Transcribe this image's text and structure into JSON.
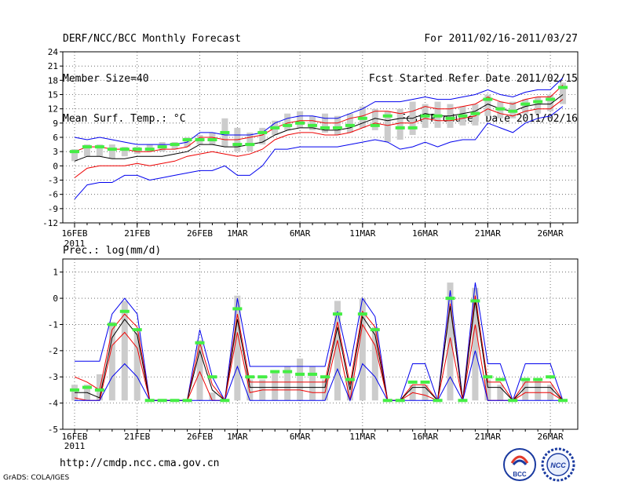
{
  "header": {
    "title": "DERF/NCC/BCC Monthly Forecast",
    "member_size": "Member Size=40",
    "variable": "Mean Surf. Temp.: °C",
    "period": "For 2011/02/16-2011/03/27",
    "started": "Fcst Started Refer Date 2011/02/15",
    "produced": "Fcst Produced Date 2011/02/16"
  },
  "footer": {
    "url": "http://cmdp.ncc.cma.gov.cn",
    "grads": "GrADS: COLA/IGES",
    "logo1_text": "BCC",
    "logo2_text": "NCC"
  },
  "colors": {
    "bar": "#cccccc",
    "envelope": "#0000ee",
    "spread": "#ee0000",
    "mean": "#000000",
    "marker": "#44ee44"
  },
  "chart_data": [
    {
      "type": "line",
      "title": "Mean Surf. Temp.: °C",
      "ylim": [
        -12,
        24
      ],
      "yticks": [
        -12,
        -9,
        -6,
        -3,
        0,
        3,
        6,
        9,
        12,
        15,
        18,
        21,
        24
      ],
      "x_tick_labels": [
        "16FEB",
        "21FEB",
        "26FEB",
        "1MAR",
        "6MAR",
        "11MAR",
        "16MAR",
        "21MAR",
        "26MAR"
      ],
      "x_tick_index": [
        0,
        5,
        10,
        13,
        18,
        23,
        28,
        33,
        38
      ],
      "year_label": "2011",
      "days": 40,
      "series": [
        {
          "name": "max",
          "values": [
            6,
            5.5,
            6,
            5.5,
            5,
            4.5,
            4.5,
            4.5,
            4.5,
            5,
            7,
            7,
            6.5,
            6.5,
            6.5,
            7,
            9,
            10,
            10.5,
            10.5,
            10,
            10,
            11,
            12,
            13.5,
            13.5,
            13.5,
            14,
            14.5,
            14,
            14,
            14.5,
            15,
            16,
            15,
            14.5,
            15.5,
            16,
            16,
            18.5
          ]
        },
        {
          "name": "upper",
          "values": [
            3,
            4,
            4,
            3.5,
            3.5,
            3,
            3,
            3.5,
            3.5,
            4,
            6,
            6,
            5.5,
            5.5,
            6,
            6.5,
            8,
            9,
            9.5,
            9.5,
            9,
            9,
            10,
            10.5,
            11.5,
            11.5,
            11,
            11.5,
            12.5,
            12,
            12,
            12.5,
            13,
            14.5,
            13.5,
            13,
            14,
            14.5,
            14.5,
            17
          ]
        },
        {
          "name": "mean",
          "values": [
            1,
            2,
            2,
            1.5,
            1.5,
            2,
            2,
            2,
            2.5,
            3,
            4.5,
            4.5,
            4,
            4,
            4.5,
            5,
            6.5,
            7.5,
            8,
            8,
            7.5,
            7.5,
            8,
            9,
            10,
            9.5,
            10,
            10,
            11,
            10.5,
            10.5,
            11,
            11.5,
            13,
            12,
            11.5,
            12.5,
            13,
            13,
            15
          ]
        },
        {
          "name": "lower",
          "values": [
            -2.5,
            -0.5,
            0,
            0,
            0,
            0.5,
            0,
            0.5,
            1,
            2,
            2.5,
            3,
            2.5,
            2,
            2.5,
            3.5,
            5.5,
            6.5,
            7,
            7,
            6.5,
            6.5,
            7,
            8,
            9,
            8.5,
            9,
            9,
            10,
            9.5,
            9.5,
            10,
            10.5,
            12,
            11,
            10.5,
            11.5,
            12,
            12,
            14
          ]
        },
        {
          "name": "min",
          "values": [
            -7,
            -4,
            -3.5,
            -3.5,
            -2,
            -2,
            -3,
            -2.5,
            -2,
            -1.5,
            -1,
            -1,
            0,
            -2,
            -2,
            0,
            3.5,
            3.5,
            4,
            4,
            4,
            4,
            4.5,
            5,
            5.5,
            5,
            3.5,
            4,
            5,
            4,
            5,
            5.5,
            5.5,
            9,
            8,
            7,
            9,
            10,
            10.5,
            12.5
          ]
        }
      ],
      "bars_low": [
        1,
        2,
        2,
        1.5,
        2,
        2.5,
        3,
        3,
        3.5,
        4,
        4.5,
        4.5,
        4,
        3,
        3,
        4.5,
        6.5,
        7.5,
        8,
        7.5,
        7,
        6.5,
        7,
        8,
        7.5,
        5,
        5.5,
        6.5,
        8,
        8,
        8,
        8.5,
        8.5,
        10.5,
        10,
        10,
        11,
        11,
        11.5,
        13
      ],
      "bars_high": [
        3.5,
        4.5,
        4.5,
        4.5,
        4,
        4,
        4.5,
        5,
        5,
        6,
        6.5,
        7,
        10,
        8,
        7,
        8,
        9.5,
        11,
        11.5,
        10.5,
        11,
        10.5,
        11,
        12.5,
        12,
        11.5,
        12,
        13.5,
        13,
        13.5,
        13,
        12.5,
        13,
        15,
        13.5,
        13.5,
        14,
        14.5,
        15,
        17.5
      ],
      "markers": [
        3,
        4,
        4,
        3.5,
        3.5,
        3.5,
        3.5,
        4,
        4.5,
        5.5,
        5.5,
        5.5,
        7,
        4.5,
        4.5,
        7,
        8,
        8.5,
        9,
        8.5,
        8,
        8,
        8.5,
        10,
        8.5,
        10.5,
        8,
        8,
        10.5,
        10.5,
        10,
        10.5,
        11,
        14,
        12,
        11.5,
        13,
        13.5,
        14,
        16.5
      ]
    },
    {
      "type": "line",
      "title": "Prec.: log(mm/d)",
      "ylim": [
        -5,
        1.5
      ],
      "yticks": [
        -5,
        -4,
        -3,
        -2,
        -1,
        0,
        1
      ],
      "x_tick_labels": [
        "16FEB",
        "21FEB",
        "26FEB",
        "1MAR",
        "6MAR",
        "11MAR",
        "16MAR",
        "21MAR",
        "26MAR"
      ],
      "x_tick_index": [
        0,
        5,
        10,
        13,
        18,
        23,
        28,
        33,
        38
      ],
      "year_label": "2011",
      "days": 40,
      "series": [
        {
          "name": "max",
          "values": [
            -2.4,
            -2.4,
            -2.4,
            -0.6,
            0,
            -0.6,
            -3.9,
            -3.9,
            -3.9,
            -3.9,
            -1.2,
            -3,
            -3.9,
            0,
            -2.6,
            -2.6,
            -2.6,
            -2.6,
            -2.6,
            -2.6,
            -2.6,
            -0.5,
            -2.6,
            0,
            -0.7,
            -3.9,
            -3.9,
            -2.5,
            -2.5,
            -3.9,
            0.3,
            -3.9,
            0.6,
            -2.5,
            -2.5,
            -3.9,
            -2.5,
            -2.5,
            -2.5,
            -3.9
          ]
        },
        {
          "name": "upper",
          "values": [
            -3,
            -3.2,
            -3.5,
            -1.2,
            -0.6,
            -1.1,
            -3.9,
            -3.9,
            -3.9,
            -3.9,
            -1.7,
            -3.3,
            -3.9,
            -0.6,
            -3.2,
            -3.2,
            -3.2,
            -3.2,
            -3.2,
            -3.2,
            -3.2,
            -0.9,
            -3.3,
            -0.5,
            -1.1,
            -3.9,
            -3.9,
            -3.3,
            -3.3,
            -3.9,
            -0.2,
            -3.9,
            0.1,
            -3.2,
            -3.2,
            -3.9,
            -3.2,
            -3.2,
            -3.2,
            -3.9
          ]
        },
        {
          "name": "mean",
          "values": [
            -3.6,
            -3.6,
            -3.8,
            -1.5,
            -0.8,
            -1.4,
            -3.9,
            -3.9,
            -3.9,
            -3.9,
            -2,
            -3.5,
            -3.9,
            -0.8,
            -3.4,
            -3.4,
            -3.4,
            -3.4,
            -3.4,
            -3.4,
            -3.4,
            -1.1,
            -3.5,
            -0.7,
            -1.4,
            -3.9,
            -3.9,
            -3.4,
            -3.4,
            -3.9,
            -0.3,
            -3.9,
            -0.1,
            -3.4,
            -3.4,
            -3.9,
            -3.4,
            -3.4,
            -3.4,
            -3.9
          ]
        },
        {
          "name": "lower",
          "values": [
            -3.8,
            -3.9,
            -3.9,
            -1.8,
            -1.3,
            -1.9,
            -3.9,
            -3.9,
            -3.9,
            -3.9,
            -2.8,
            -3.9,
            -3.9,
            -1.3,
            -3.6,
            -3.5,
            -3.5,
            -3.5,
            -3.5,
            -3.6,
            -3.6,
            -1.6,
            -3.9,
            -1,
            -1.8,
            -3.9,
            -3.9,
            -3.6,
            -3.7,
            -3.9,
            -1.5,
            -3.9,
            -1,
            -3.9,
            -3.9,
            -3.9,
            -3.6,
            -3.6,
            -3.6,
            -3.9
          ]
        },
        {
          "name": "min",
          "values": [
            -3.9,
            -3.9,
            -3.9,
            -3,
            -2.5,
            -3,
            -3.9,
            -3.9,
            -3.9,
            -3.9,
            -3.9,
            -3.9,
            -3.9,
            -2.6,
            -3.9,
            -3.9,
            -3.9,
            -3.9,
            -3.9,
            -3.9,
            -3.9,
            -2.7,
            -3.9,
            -2.5,
            -3,
            -3.9,
            -3.9,
            -3.9,
            -3.9,
            -3.9,
            -3,
            -3.9,
            -2,
            -3.9,
            -3.9,
            -3.9,
            -3.9,
            -3.9,
            -3.9,
            -3.9
          ]
        }
      ],
      "bars_low": [
        -3.9,
        -3.9,
        -3.9,
        -3.9,
        -3.9,
        -3.9,
        -3.9,
        -3.9,
        -3.9,
        -3.9,
        -3.9,
        -3.9,
        -3.9,
        -3.9,
        -3.9,
        -3.9,
        -3.9,
        -3.9,
        -3.9,
        -3.9,
        -3.9,
        -3.9,
        -3.9,
        -3.9,
        -3.9,
        -3.9,
        -3.9,
        -3.9,
        -3.9,
        -3.9,
        -3.9,
        -3.9,
        -3.9,
        -3.9,
        -3.9,
        -3.9,
        -3.9,
        -3.9,
        -3.9,
        -3.9
      ],
      "bars_high": [
        -3.3,
        -3.3,
        -2.9,
        -0.9,
        -0.1,
        -1.3,
        -3.9,
        -3.9,
        -3.9,
        -3.9,
        -1.6,
        -3.6,
        -3.9,
        0.1,
        -3.1,
        -3.1,
        -2.8,
        -2.6,
        -2.3,
        -2.6,
        -3.1,
        -0.1,
        -3.1,
        0,
        -1.1,
        -3.9,
        -3.9,
        -3.3,
        -3.3,
        -3.9,
        0.6,
        -3.9,
        0.4,
        -3.1,
        -3.3,
        -3.9,
        -3.1,
        -3.1,
        -3.3,
        -3.9
      ],
      "markers": [
        -3.5,
        -3.4,
        -3.5,
        -1,
        -0.5,
        -1.2,
        -3.9,
        -3.9,
        -3.9,
        -3.9,
        -1.7,
        -3,
        -3.9,
        -0.4,
        -3,
        -3,
        -2.8,
        -2.8,
        -2.9,
        -2.9,
        -3,
        -0.6,
        -3.1,
        -0.6,
        -1.2,
        -3.9,
        -3.9,
        -3.2,
        -3.2,
        -3.9,
        0,
        -3.9,
        -0.1,
        -3,
        -3.1,
        -3.9,
        -3.1,
        -3.1,
        -3,
        -3.9
      ]
    }
  ]
}
